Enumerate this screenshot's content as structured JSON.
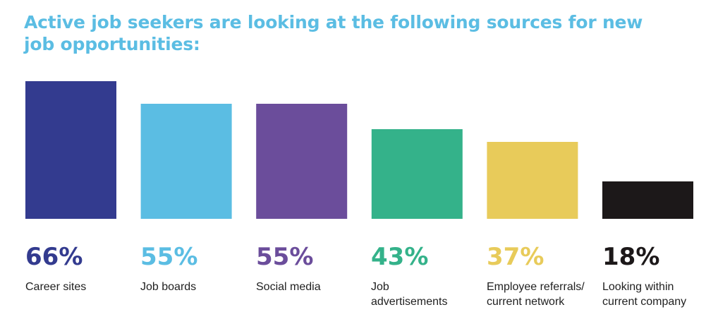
{
  "chart_data": {
    "type": "bar",
    "title": "Active job seekers are looking at the following sources for new job opportunities:",
    "categories": [
      "Career sites",
      "Job boards",
      "Social media",
      "Job\nadvertisements",
      "Employee referrals/\ncurrent network",
      "Looking within\ncurrent company"
    ],
    "values": [
      66,
      55,
      55,
      43,
      37,
      18
    ],
    "value_labels": [
      "66%",
      "55%",
      "55%",
      "43%",
      "37%",
      "18%"
    ],
    "colors": [
      "#333b8f",
      "#5bbde3",
      "#6b4d9b",
      "#34b28a",
      "#e8cb5a",
      "#1c1819"
    ],
    "unit": "%",
    "ylim": [
      0,
      66
    ],
    "grid": false,
    "legend": "none"
  }
}
